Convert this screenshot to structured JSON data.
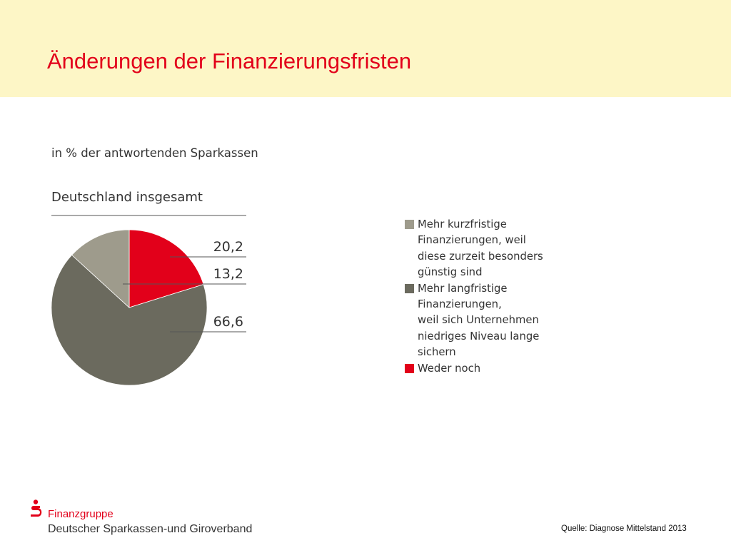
{
  "slide": {
    "title": "Änderungen der Finanzierungsfristen",
    "subtitle": "in % der antwortenden Sparkassen",
    "source": "Quelle: Diagnose Mittelstand 2013"
  },
  "footer": {
    "org_line1": "Finanzgruppe",
    "org_line2": "Deutscher Sparkassen-und Giroverband"
  },
  "colors": {
    "brand_red": "#e2001a",
    "header_band": "#fdf6c6"
  },
  "chart_data": {
    "type": "pie",
    "title": "Deutschland insgesamt",
    "value_labels": [
      "20,2",
      "13,2",
      "66,6"
    ],
    "slices": [
      {
        "name": "Weder noch",
        "value": 20.2,
        "color": "#e2001a"
      },
      {
        "name": "Mehr langfristige\nFinanzierungen,\nweil sich Unternehmen\nniedriges Niveau lange\nsichern",
        "value": 66.6,
        "color": "#6b6a5e"
      },
      {
        "name": "Mehr kurzfristige\nFinanzierungen, weil\ndiese zurzeit besonders\ngünstig sind",
        "value": 13.2,
        "color": "#9e9b8c"
      }
    ],
    "legend_order": [
      {
        "label": "Mehr kurzfristige\nFinanzierungen, weil\ndiese zurzeit besonders\ngünstig sind",
        "color": "#9e9b8c"
      },
      {
        "label": "Mehr langfristige\nFinanzierungen,\nweil sich Unternehmen\nniedriges Niveau lange\nsichern",
        "color": "#6b6a5e"
      },
      {
        "label": "Weder noch",
        "color": "#e2001a"
      }
    ],
    "legend_position": "right"
  }
}
